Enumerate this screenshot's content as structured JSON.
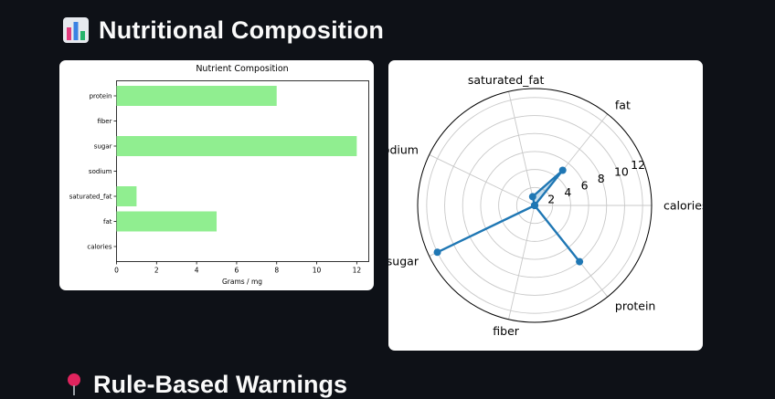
{
  "page": {
    "title": "Nutritional Composition",
    "title_icon": "bar-chart-icon",
    "next_section_title": "Rule-Based Warnings",
    "next_section_icon": "pushpin-icon"
  },
  "colors": {
    "background": "#0e1117",
    "bar_fill": "#90ee90",
    "radar_line": "#1f77b4",
    "radar_fill": "#1f77b4"
  },
  "chart_data": [
    {
      "type": "bar",
      "orientation": "horizontal",
      "title": "Nutrient Composition",
      "xlabel": "Grams / mg",
      "ylabel": "",
      "categories": [
        "calories",
        "fat",
        "saturated_fat",
        "sodium",
        "sugar",
        "fiber",
        "protein"
      ],
      "values": [
        0,
        5,
        1,
        0,
        12,
        0,
        8
      ],
      "xlim": [
        0,
        12.6
      ],
      "xticks": [
        0,
        2,
        4,
        6,
        8,
        10,
        12
      ],
      "grid": false
    },
    {
      "type": "radar",
      "title": "",
      "categories": [
        "calories",
        "fat",
        "saturated_fat",
        "sodium",
        "sugar",
        "fiber",
        "protein"
      ],
      "values": [
        0,
        5,
        1,
        0,
        12,
        0,
        8
      ],
      "rlim": [
        0,
        13
      ],
      "rticks": [
        2,
        4,
        6,
        8,
        10,
        12
      ],
      "grid": true,
      "filled": true
    }
  ]
}
